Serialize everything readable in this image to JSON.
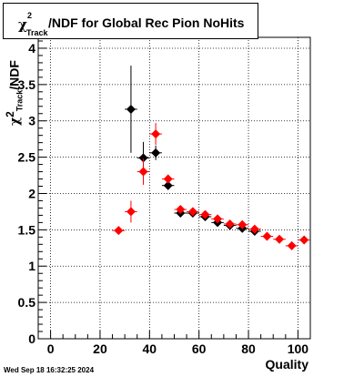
{
  "page": {
    "title_symbol": "χ",
    "title_superscript": "2",
    "title_subscript": "Track",
    "title_rest": "/NDF for Global Rec Pion NoHits",
    "ylabel_symbol": "χ",
    "ylabel_superscript": "2",
    "ylabel_subscript": "Track",
    "ylabel_rest": "/NDF",
    "xlabel": "Quality",
    "timestamp": "Wed Sep 18 16:32:25 2024"
  },
  "chart_data": {
    "type": "scatter",
    "title": "χ²Track/NDF for Global Rec Pion NoHits",
    "xlabel": "Quality",
    "ylabel": "χ²Track/NDF",
    "xlim": [
      -5,
      105
    ],
    "ylim": [
      0,
      4.15
    ],
    "x_ticks": [
      0,
      20,
      40,
      60,
      80,
      100
    ],
    "y_ticks": [
      0,
      0.5,
      1,
      1.5,
      2,
      2.5,
      3,
      3.5,
      4
    ],
    "x_tick_labels": [
      "0",
      "20",
      "40",
      "60",
      "80",
      "100"
    ],
    "y_tick_labels": [
      "0",
      "0.5",
      "1",
      "1.5",
      "2",
      "2.5",
      "3",
      "3.5",
      "4"
    ],
    "grid": true,
    "series": [
      {
        "color": "#000000",
        "points": [
          {
            "x": 32.5,
            "y": 3.16,
            "err": 0.6
          },
          {
            "x": 37.5,
            "y": 2.49,
            "err": 0.22
          },
          {
            "x": 42.5,
            "y": 2.56,
            "err": 0.1
          },
          {
            "x": 47.5,
            "y": 2.11,
            "err": 0.06
          },
          {
            "x": 52.5,
            "y": 1.73,
            "err": 0.03
          },
          {
            "x": 57.5,
            "y": 1.73,
            "err": 0.03
          },
          {
            "x": 62.5,
            "y": 1.68,
            "err": 0.03
          },
          {
            "x": 67.5,
            "y": 1.6,
            "err": 0.03
          },
          {
            "x": 72.5,
            "y": 1.56,
            "err": 0.03
          },
          {
            "x": 77.5,
            "y": 1.52,
            "err": 0.03
          },
          {
            "x": 82.5,
            "y": 1.48,
            "err": 0.03
          }
        ]
      },
      {
        "color": "#ff0000",
        "points": [
          {
            "x": 27.5,
            "y": 1.49,
            "err": 0.03
          },
          {
            "x": 32.5,
            "y": 1.75,
            "err": 0.15
          },
          {
            "x": 37.5,
            "y": 2.3,
            "err": 0.18
          },
          {
            "x": 42.5,
            "y": 2.82,
            "err": 0.15
          },
          {
            "x": 47.5,
            "y": 2.2,
            "err": 0.06
          },
          {
            "x": 52.5,
            "y": 1.78,
            "err": 0.03
          },
          {
            "x": 57.5,
            "y": 1.75,
            "err": 0.03
          },
          {
            "x": 62.5,
            "y": 1.71,
            "err": 0.03
          },
          {
            "x": 67.5,
            "y": 1.65,
            "err": 0.03
          },
          {
            "x": 72.5,
            "y": 1.58,
            "err": 0.03
          },
          {
            "x": 77.5,
            "y": 1.57,
            "err": 0.03
          },
          {
            "x": 82.5,
            "y": 1.51,
            "err": 0.03
          },
          {
            "x": 87.5,
            "y": 1.41,
            "err": 0.03
          },
          {
            "x": 92.5,
            "y": 1.37,
            "err": 0.03
          },
          {
            "x": 97.5,
            "y": 1.28,
            "err": 0.03
          },
          {
            "x": 102.5,
            "y": 1.36,
            "err": 0.03
          }
        ]
      }
    ]
  }
}
